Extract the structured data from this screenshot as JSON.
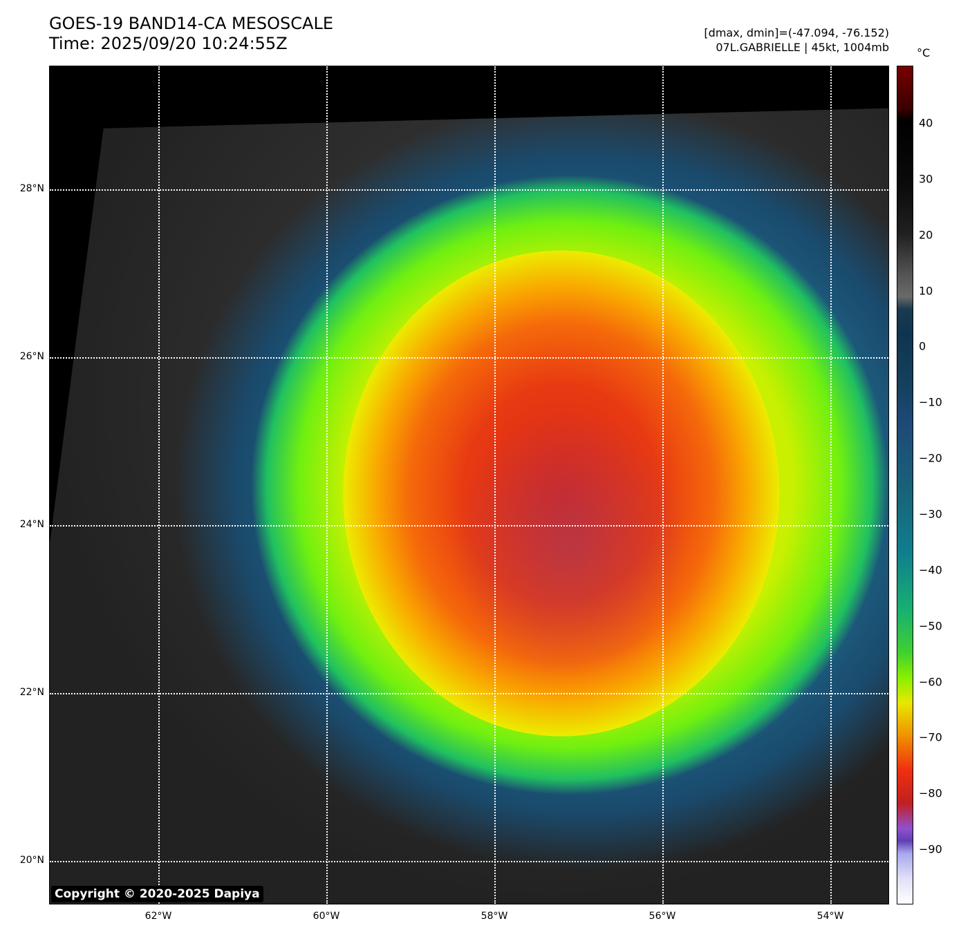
{
  "title": {
    "line1": "GOES-19 BAND14-CA MESOSCALE",
    "line2": "Time: 2025/09/20 10:24:55Z"
  },
  "info": {
    "line1": "[dmax, dmin]=(-47.094, -76.152)",
    "line2": "07L.GABRIELLE | 45kt, 1004mb"
  },
  "copyright": "Copyright © 2020-2025 Dapiya",
  "lat_labels": [
    "28°N",
    "26°N",
    "24°N",
    "22°N",
    "20°N"
  ],
  "lon_labels": [
    "62°W",
    "60°W",
    "58°W",
    "56°W",
    "54°W"
  ],
  "colorbar": {
    "unit": "°C",
    "range": [
      -100,
      50
    ],
    "ticks": [
      "40",
      "30",
      "20",
      "10",
      "0",
      "−10",
      "−20",
      "−30",
      "−40",
      "−50",
      "−60",
      "−70",
      "−80",
      "−90"
    ]
  }
}
